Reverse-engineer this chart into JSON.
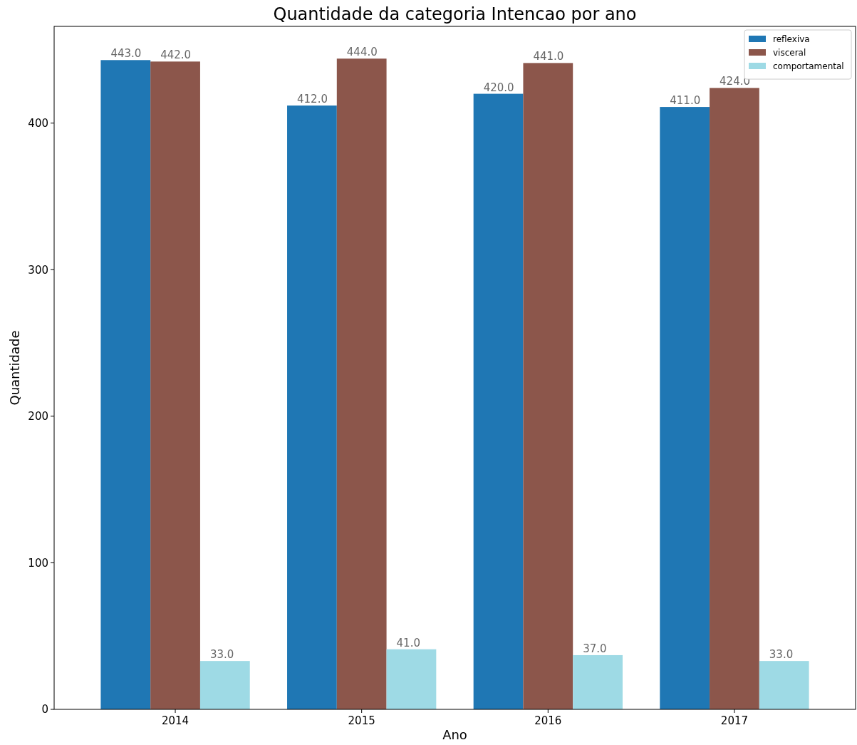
{
  "chart_data": {
    "type": "bar",
    "title": "Quantidade da categoria Intencao por ano",
    "xlabel": "Ano",
    "ylabel": "Quantidade",
    "categories": [
      "2014",
      "2015",
      "2016",
      "2017"
    ],
    "series": [
      {
        "name": "reflexiva",
        "color": "#1f77b4",
        "values": [
          443,
          412,
          420,
          411
        ],
        "value_labels": [
          "443.0",
          "412.0",
          "420.0",
          "411.0"
        ]
      },
      {
        "name": "visceral",
        "color": "#8c564b",
        "values": [
          442,
          444,
          441,
          424
        ],
        "value_labels": [
          "442.0",
          "444.0",
          "441.0",
          "424.0"
        ]
      },
      {
        "name": "comportamental",
        "color": "#9edae5",
        "values": [
          33,
          41,
          37,
          33
        ],
        "value_labels": [
          "33.0",
          "41.0",
          "37.0",
          "33.0"
        ]
      }
    ],
    "ylim": [
      0,
      466
    ],
    "yticks": [
      0,
      100,
      200,
      300,
      400
    ],
    "grid": false,
    "legend": "top right"
  }
}
